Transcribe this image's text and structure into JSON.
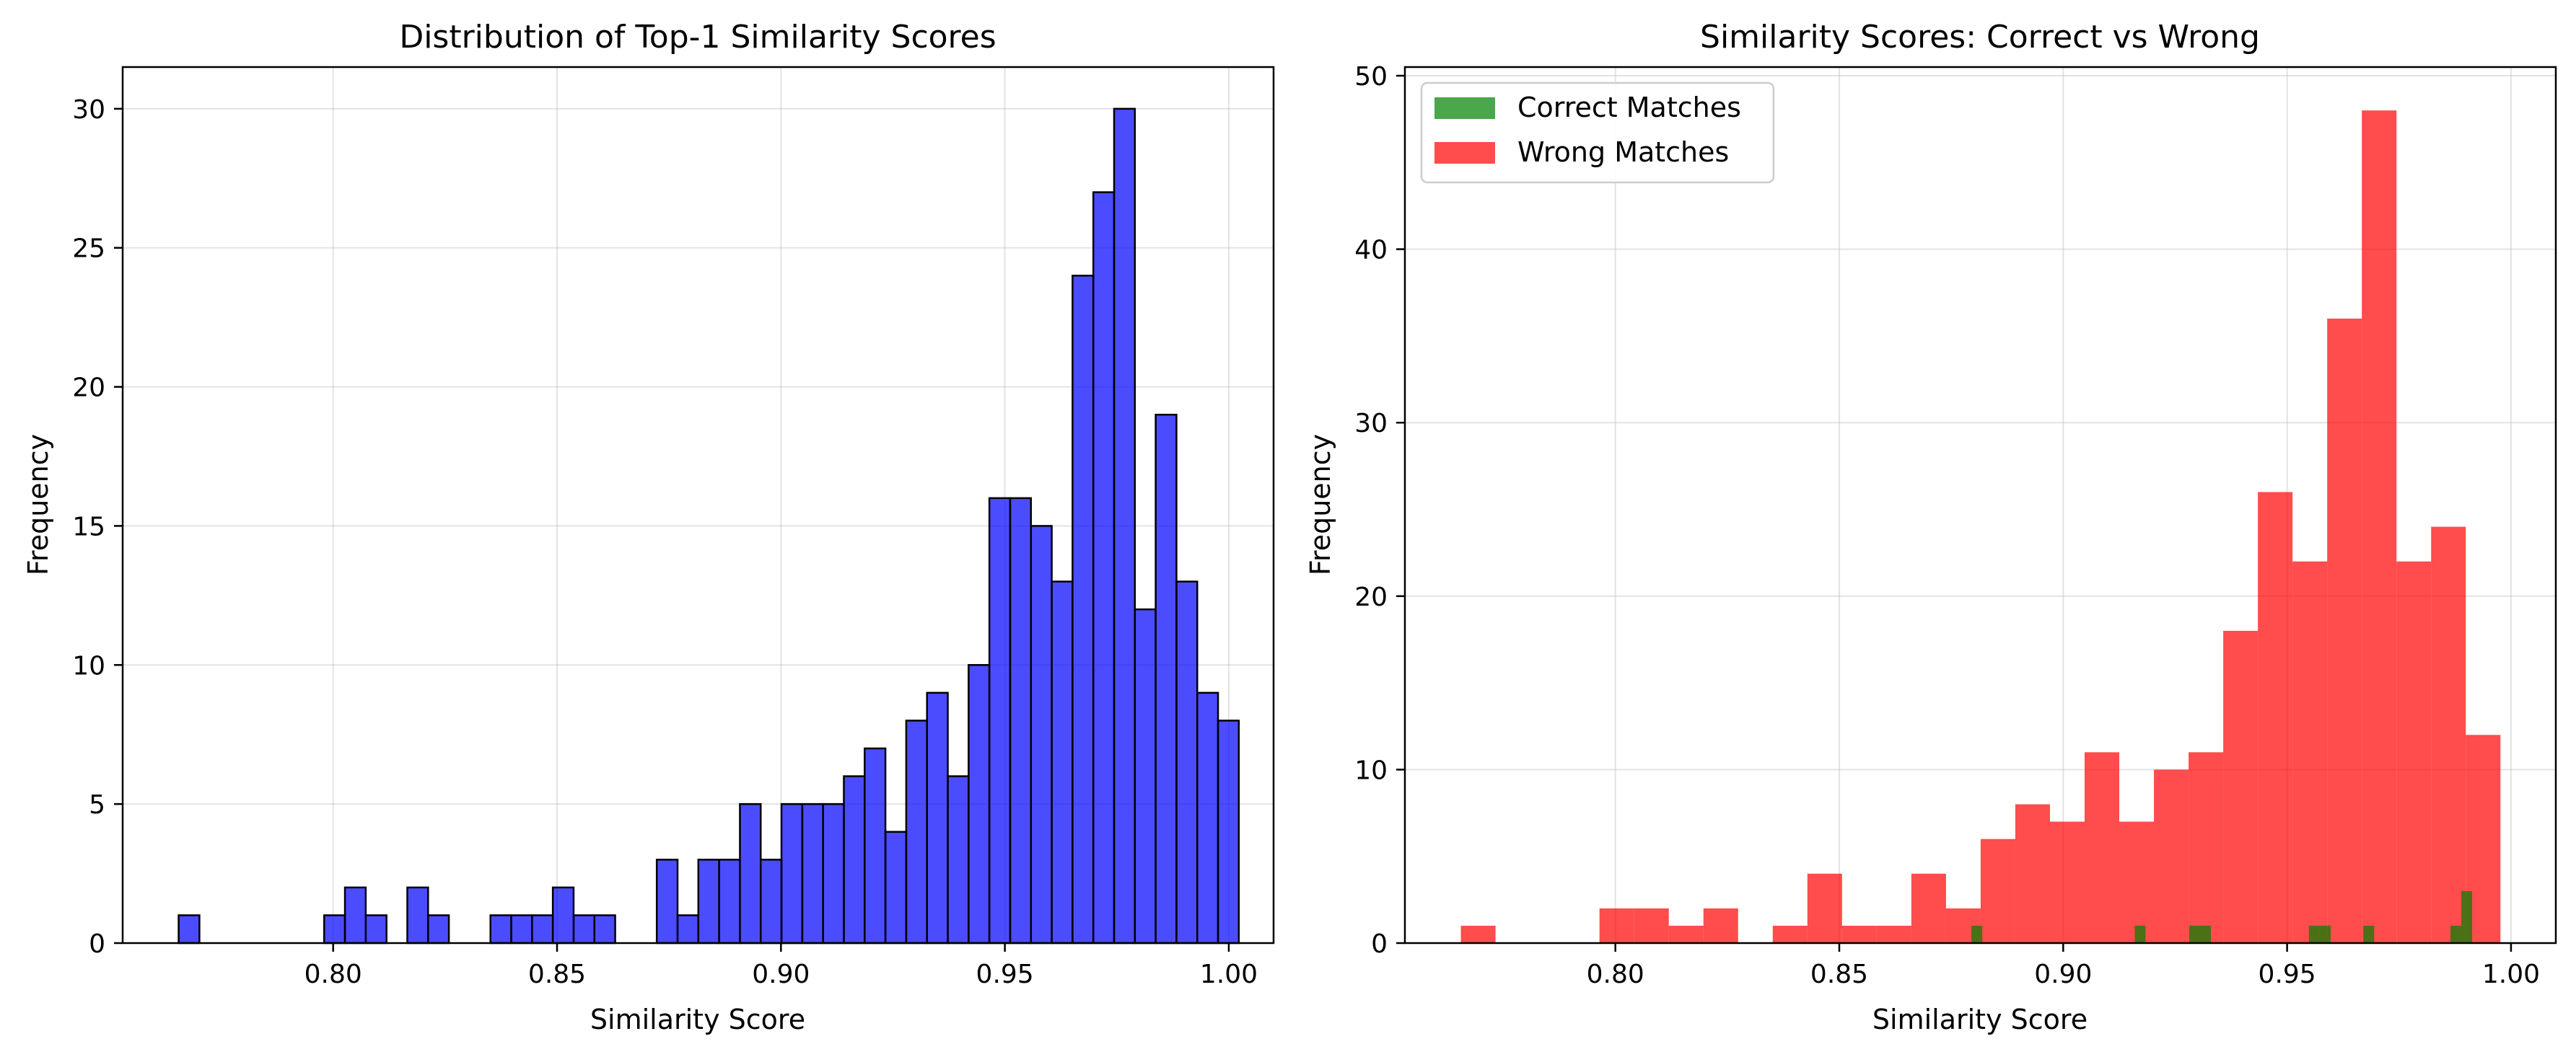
{
  "chart_data": [
    {
      "type": "bar",
      "title": "Distribution of Top-1 Similarity Scores",
      "xlabel": "Similarity Score",
      "ylabel": "Frequency",
      "xlim": [
        0.753,
        1.01
      ],
      "ylim": [
        0,
        31.5
      ],
      "xticks": [
        0.8,
        0.85,
        0.9,
        0.95,
        1.0
      ],
      "xtick_labels": [
        "0.80",
        "0.85",
        "0.90",
        "0.95",
        "1.00"
      ],
      "yticks": [
        0,
        5,
        10,
        15,
        20,
        25,
        30
      ],
      "ytick_labels": [
        "0",
        "5",
        "10",
        "15",
        "20",
        "25",
        "30"
      ],
      "grid": true,
      "bins": {
        "start": 0.7655,
        "width": 0.004642
      },
      "series": [
        {
          "color": "#0000ff",
          "values": [
            1,
            0,
            0,
            0,
            0,
            0,
            0,
            1,
            2,
            1,
            0,
            2,
            1,
            0,
            0,
            1,
            1,
            1,
            2,
            1,
            1,
            0,
            0,
            3,
            1,
            3,
            3,
            5,
            3,
            5,
            5,
            5,
            6,
            7,
            4,
            8,
            9,
            6,
            10,
            16,
            16,
            15,
            13,
            24,
            27,
            30,
            12,
            19,
            13,
            9,
            8
          ]
        }
      ]
    },
    {
      "type": "bar",
      "title": "Similarity Scores: Correct vs Wrong",
      "xlabel": "Similarity Score",
      "ylabel": "Frequency",
      "xlim": [
        0.753,
        1.01
      ],
      "ylim": [
        0,
        50.5
      ],
      "xticks": [
        0.8,
        0.85,
        0.9,
        0.95,
        1.0
      ],
      "xtick_labels": [
        "0.80",
        "0.85",
        "0.90",
        "0.95",
        "1.00"
      ],
      "yticks": [
        0,
        10,
        20,
        30,
        40,
        50
      ],
      "ytick_labels": [
        "0",
        "10",
        "20",
        "30",
        "40",
        "50"
      ],
      "grid": true,
      "legend_position": "top-left",
      "bins": {
        "start": 0.7655,
        "width": 0.007738
      },
      "series": [
        {
          "name": "Correct Matches",
          "color": "#008000",
          "bins": {
            "start": 0.8795,
            "width": 0.002431
          },
          "values": [
            1,
            0,
            0,
            0,
            0,
            0,
            0,
            0,
            0,
            0,
            0,
            0,
            0,
            0,
            0,
            1,
            0,
            0,
            0,
            0,
            1,
            1,
            0,
            0,
            0,
            0,
            0,
            0,
            0,
            0,
            0,
            1,
            1,
            0,
            0,
            0,
            1,
            0,
            0,
            0,
            0,
            0,
            0,
            0,
            1,
            3
          ]
        },
        {
          "name": "Wrong Matches",
          "color": "#ff0000",
          "values": [
            1,
            0,
            0,
            0,
            2,
            2,
            1,
            2,
            0,
            1,
            4,
            1,
            1,
            4,
            2,
            6,
            8,
            7,
            11,
            7,
            10,
            11,
            18,
            26,
            22,
            36,
            48,
            22,
            24,
            12
          ]
        }
      ]
    }
  ]
}
